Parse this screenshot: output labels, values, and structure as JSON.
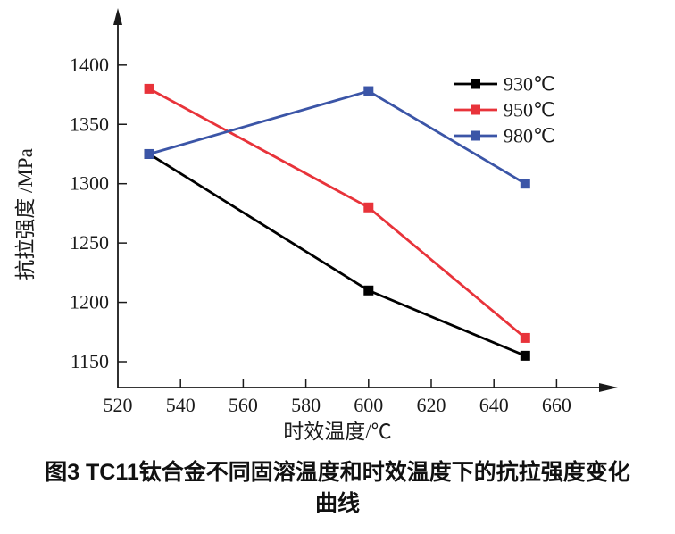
{
  "figure": {
    "caption_line1": "图3  TC11钛合金不同固溶温度和时效温度下的抗拉强度变化",
    "caption_line2": "曲线"
  },
  "chart_data": {
    "type": "line",
    "title": "",
    "xlabel": "时效温度/℃",
    "ylabel": "抗拉强度 /MPa",
    "x": [
      530,
      600,
      650
    ],
    "series": [
      {
        "name": "930℃",
        "color": "#000000",
        "values": [
          1325,
          1210,
          1155
        ]
      },
      {
        "name": "950℃",
        "color": "#e8333a",
        "values": [
          1380,
          1280,
          1170
        ]
      },
      {
        "name": "980℃",
        "color": "#3b55a7",
        "values": [
          1325,
          1378,
          1300
        ]
      }
    ],
    "x_ticks": [
      520,
      540,
      560,
      580,
      600,
      620,
      640,
      660
    ],
    "y_ticks": [
      1150,
      1200,
      1250,
      1300,
      1350,
      1400
    ],
    "xlim": [
      520,
      678
    ],
    "ylim": [
      1123,
      1447
    ],
    "marker": "square",
    "grid": false,
    "legend_position": "upper right",
    "axis_color": "#1a1a1a"
  }
}
